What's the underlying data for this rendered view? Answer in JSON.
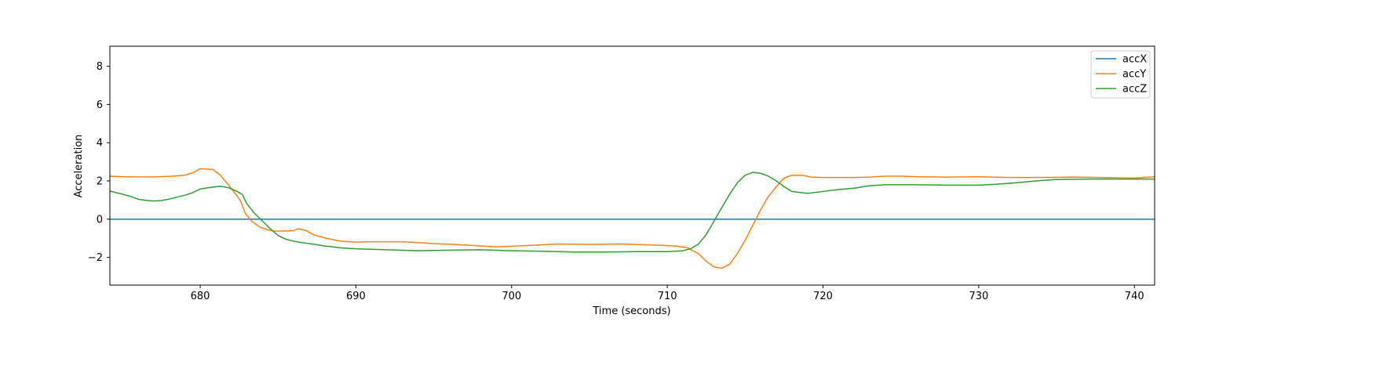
{
  "chart_data": {
    "type": "line",
    "xlabel": "Time (seconds)",
    "ylabel": "Acceleration",
    "xlim": [
      674.2,
      741.3
    ],
    "ylim": [
      -3.45,
      9.05
    ],
    "x_ticks": [
      680,
      690,
      700,
      710,
      720,
      730,
      740
    ],
    "x_tick_labels": [
      "680",
      "690",
      "700",
      "710",
      "720",
      "730",
      "740"
    ],
    "y_ticks": [
      -2,
      0,
      2,
      4,
      6,
      8
    ],
    "y_tick_labels": [
      "−2",
      "0",
      "2",
      "4",
      "6",
      "8"
    ],
    "grid": false,
    "legend_position": "top-right",
    "series": [
      {
        "name": "accX",
        "color": "#1f77b4",
        "points": [
          [
            674.2,
            0.0
          ],
          [
            741.3,
            0.0
          ]
        ]
      },
      {
        "name": "accY",
        "color": "#ff7f0e",
        "points": [
          [
            674.2,
            2.25
          ],
          [
            675.0,
            2.22
          ],
          [
            676.0,
            2.21
          ],
          [
            677.0,
            2.21
          ],
          [
            678.0,
            2.24
          ],
          [
            679.0,
            2.3
          ],
          [
            679.5,
            2.42
          ],
          [
            680.0,
            2.64
          ],
          [
            680.8,
            2.6
          ],
          [
            681.3,
            2.3
          ],
          [
            681.8,
            1.8
          ],
          [
            682.2,
            1.4
          ],
          [
            682.6,
            0.95
          ],
          [
            682.9,
            0.3
          ],
          [
            683.3,
            -0.1
          ],
          [
            683.8,
            -0.4
          ],
          [
            684.3,
            -0.55
          ],
          [
            684.8,
            -0.62
          ],
          [
            685.5,
            -0.62
          ],
          [
            686.0,
            -0.6
          ],
          [
            686.3,
            -0.5
          ],
          [
            686.8,
            -0.6
          ],
          [
            687.3,
            -0.82
          ],
          [
            688.0,
            -0.98
          ],
          [
            689.0,
            -1.15
          ],
          [
            690.0,
            -1.2
          ],
          [
            691.0,
            -1.18
          ],
          [
            693.0,
            -1.18
          ],
          [
            695.0,
            -1.28
          ],
          [
            697.0,
            -1.35
          ],
          [
            699.0,
            -1.45
          ],
          [
            701.0,
            -1.38
          ],
          [
            703.0,
            -1.3
          ],
          [
            705.0,
            -1.32
          ],
          [
            707.0,
            -1.3
          ],
          [
            709.0,
            -1.35
          ],
          [
            710.5,
            -1.4
          ],
          [
            711.3,
            -1.5
          ],
          [
            712.0,
            -1.8
          ],
          [
            712.5,
            -2.2
          ],
          [
            713.0,
            -2.5
          ],
          [
            713.5,
            -2.57
          ],
          [
            714.0,
            -2.35
          ],
          [
            714.5,
            -1.8
          ],
          [
            715.0,
            -1.1
          ],
          [
            715.5,
            -0.3
          ],
          [
            716.0,
            0.5
          ],
          [
            716.5,
            1.2
          ],
          [
            717.0,
            1.7
          ],
          [
            717.5,
            2.15
          ],
          [
            718.0,
            2.3
          ],
          [
            718.7,
            2.3
          ],
          [
            719.2,
            2.2
          ],
          [
            720.0,
            2.18
          ],
          [
            721.0,
            2.18
          ],
          [
            722.0,
            2.18
          ],
          [
            723.0,
            2.2
          ],
          [
            724.0,
            2.25
          ],
          [
            725.0,
            2.25
          ],
          [
            726.0,
            2.22
          ],
          [
            728.0,
            2.2
          ],
          [
            730.0,
            2.22
          ],
          [
            732.0,
            2.18
          ],
          [
            734.0,
            2.18
          ],
          [
            736.0,
            2.2
          ],
          [
            738.0,
            2.18
          ],
          [
            740.0,
            2.15
          ],
          [
            741.3,
            2.22
          ]
        ]
      },
      {
        "name": "accZ",
        "color": "#2ca02c",
        "points": [
          [
            674.2,
            1.47
          ],
          [
            674.8,
            1.35
          ],
          [
            675.5,
            1.2
          ],
          [
            676.0,
            1.05
          ],
          [
            676.5,
            0.98
          ],
          [
            677.0,
            0.95
          ],
          [
            677.5,
            0.97
          ],
          [
            678.0,
            1.05
          ],
          [
            679.0,
            1.25
          ],
          [
            679.5,
            1.38
          ],
          [
            680.0,
            1.58
          ],
          [
            680.8,
            1.68
          ],
          [
            681.3,
            1.72
          ],
          [
            681.8,
            1.65
          ],
          [
            682.3,
            1.48
          ],
          [
            682.7,
            1.3
          ],
          [
            683.0,
            0.8
          ],
          [
            683.5,
            0.3
          ],
          [
            684.0,
            -0.1
          ],
          [
            684.5,
            -0.5
          ],
          [
            685.0,
            -0.85
          ],
          [
            685.5,
            -1.05
          ],
          [
            686.0,
            -1.15
          ],
          [
            686.5,
            -1.22
          ],
          [
            687.0,
            -1.28
          ],
          [
            688.0,
            -1.4
          ],
          [
            689.0,
            -1.5
          ],
          [
            690.0,
            -1.55
          ],
          [
            692.0,
            -1.6
          ],
          [
            694.0,
            -1.65
          ],
          [
            696.0,
            -1.62
          ],
          [
            698.0,
            -1.6
          ],
          [
            700.0,
            -1.65
          ],
          [
            702.0,
            -1.68
          ],
          [
            704.0,
            -1.72
          ],
          [
            706.0,
            -1.72
          ],
          [
            708.0,
            -1.7
          ],
          [
            710.0,
            -1.7
          ],
          [
            711.0,
            -1.65
          ],
          [
            711.5,
            -1.55
          ],
          [
            712.0,
            -1.3
          ],
          [
            712.5,
            -0.8
          ],
          [
            713.0,
            -0.1
          ],
          [
            713.5,
            0.6
          ],
          [
            714.0,
            1.3
          ],
          [
            714.5,
            1.9
          ],
          [
            715.0,
            2.3
          ],
          [
            715.5,
            2.45
          ],
          [
            716.0,
            2.4
          ],
          [
            716.5,
            2.25
          ],
          [
            717.0,
            2.0
          ],
          [
            717.5,
            1.7
          ],
          [
            718.0,
            1.45
          ],
          [
            719.0,
            1.35
          ],
          [
            720.0,
            1.45
          ],
          [
            721.0,
            1.55
          ],
          [
            722.0,
            1.62
          ],
          [
            723.0,
            1.75
          ],
          [
            724.0,
            1.8
          ],
          [
            726.0,
            1.8
          ],
          [
            728.0,
            1.78
          ],
          [
            730.0,
            1.78
          ],
          [
            731.0,
            1.82
          ],
          [
            732.0,
            1.88
          ],
          [
            733.0,
            1.95
          ],
          [
            734.0,
            2.02
          ],
          [
            735.0,
            2.08
          ],
          [
            737.0,
            2.1
          ],
          [
            739.0,
            2.1
          ],
          [
            741.3,
            2.1
          ]
        ]
      }
    ]
  }
}
